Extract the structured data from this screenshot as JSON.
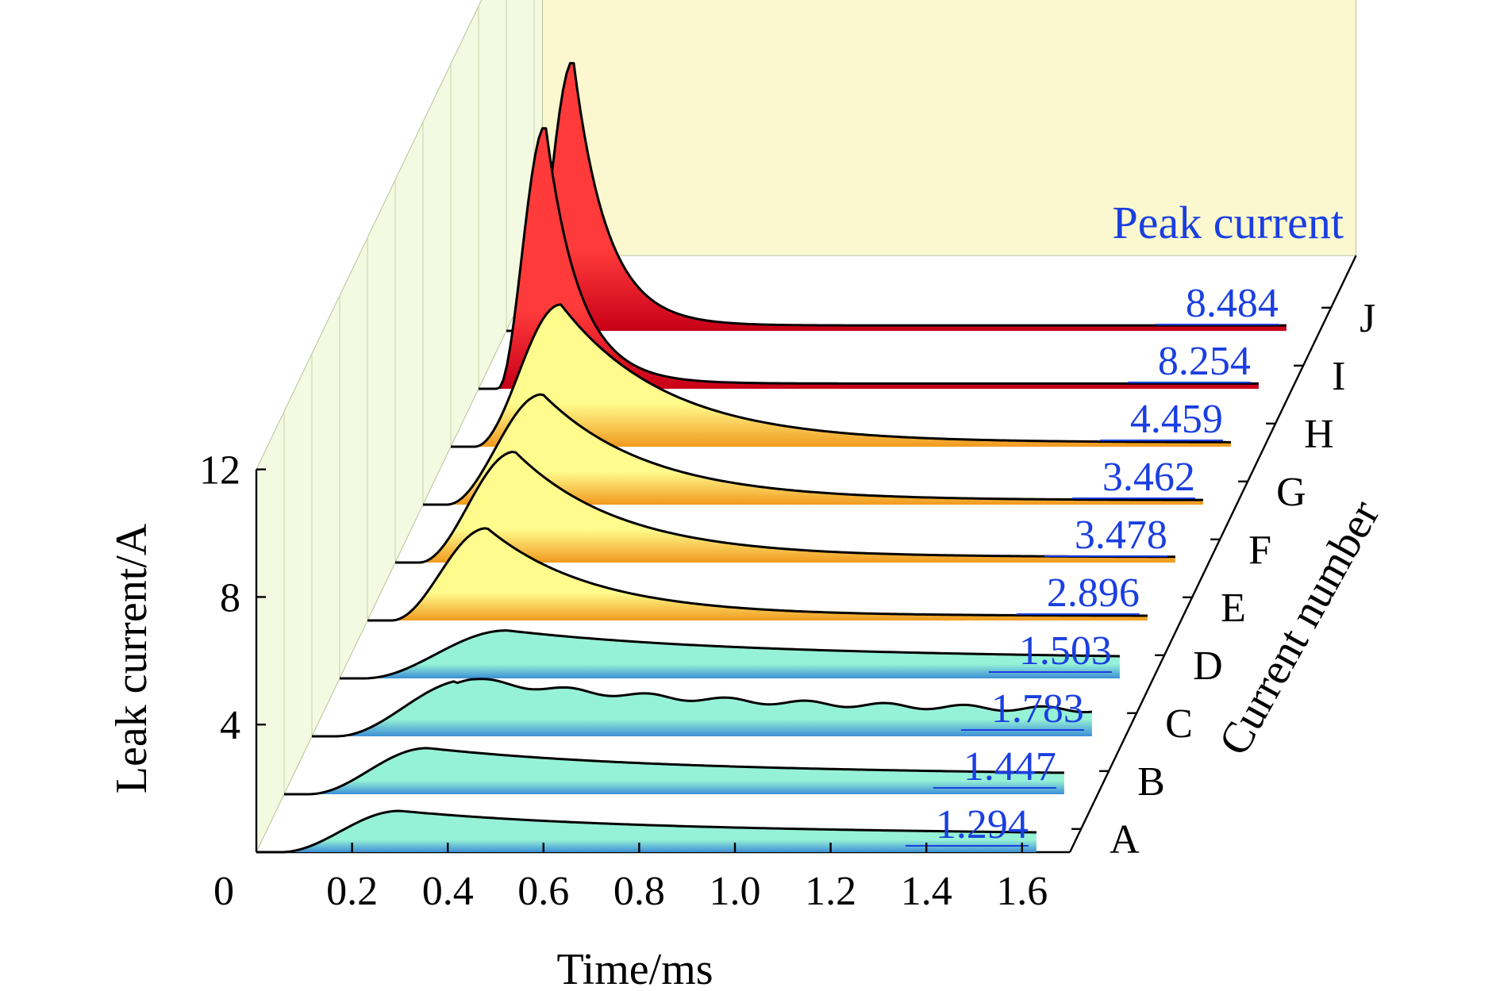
{
  "chart_data": {
    "type": "area",
    "title": "",
    "xlabel": "Time/ms",
    "ylabel": "Leak current/A",
    "zlabel": "Current number",
    "annotation_title": "Peak current",
    "x_ticks": [
      "0.2",
      "0.4",
      "0.6",
      "0.8",
      "1.0",
      "1.2",
      "1.4",
      "1.6"
    ],
    "y_ticks": [
      "0",
      "4",
      "8",
      "12"
    ],
    "xlim": [
      0,
      1.7
    ],
    "ylim": [
      0,
      12
    ],
    "grid": true,
    "colors": {
      "annotation": "#1a3fe0",
      "back_wall": "#fbf8cf",
      "side_wall": "#f4f9e2",
      "grid": "#cfd9b0",
      "low_fill_top": "#96f2d6",
      "low_fill_bottom": "#3d8fd6",
      "mid_fill_top": "#fffb8c",
      "mid_fill_bottom": "#f19a1e",
      "high_fill_top": "#ff3a3a",
      "high_fill_bottom": "#c80018"
    },
    "series": [
      {
        "name": "A",
        "peak": "1.294",
        "peak_value": 1.294,
        "rise_ms": 0.05,
        "peak_time_ms": 0.25,
        "tail_level": 0.58,
        "group": "low"
      },
      {
        "name": "B",
        "peak": "1.447",
        "peak_value": 1.447,
        "rise_ms": 0.05,
        "peak_time_ms": 0.25,
        "tail_level": 0.56,
        "group": "low"
      },
      {
        "name": "C",
        "peak": "1.783",
        "peak_value": 1.783,
        "rise_ms": 0.05,
        "peak_time_ms": 0.28,
        "tail_level": 0.56,
        "group": "low"
      },
      {
        "name": "D",
        "peak": "1.503",
        "peak_value": 1.503,
        "rise_ms": 0.05,
        "peak_time_ms": 0.3,
        "tail_level": 0.55,
        "group": "low"
      },
      {
        "name": "E",
        "peak": "2.896",
        "peak_value": 2.896,
        "rise_ms": 0.05,
        "peak_time_ms": 0.2,
        "tail_level": 0.05,
        "group": "mid"
      },
      {
        "name": "F",
        "peak": "3.478",
        "peak_value": 3.478,
        "rise_ms": 0.05,
        "peak_time_ms": 0.2,
        "tail_level": 0.05,
        "group": "mid"
      },
      {
        "name": "G",
        "peak": "3.462",
        "peak_value": 3.462,
        "rise_ms": 0.05,
        "peak_time_ms": 0.2,
        "tail_level": 0.04,
        "group": "mid"
      },
      {
        "name": "H",
        "peak": "4.459",
        "peak_value": 4.459,
        "rise_ms": 0.05,
        "peak_time_ms": 0.18,
        "tail_level": 0.03,
        "group": "mid"
      },
      {
        "name": "I",
        "peak": "8.254",
        "peak_value": 8.254,
        "rise_ms": 0.04,
        "peak_time_ms": 0.1,
        "tail_level": 0.02,
        "group": "high"
      },
      {
        "name": "J",
        "peak": "8.484",
        "peak_value": 8.484,
        "rise_ms": 0.04,
        "peak_time_ms": 0.1,
        "tail_level": 0.02,
        "group": "high"
      }
    ]
  }
}
